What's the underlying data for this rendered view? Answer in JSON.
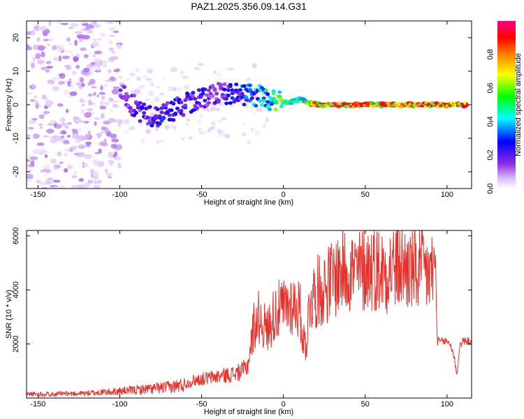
{
  "title": "PAZ1.2025.356.09.14.G31",
  "colors": {
    "snr_line": "#e8302b",
    "axis": "#000000"
  },
  "chart_data": [
    {
      "type": "heatmap",
      "xlabel": "Height of straight line (km)",
      "ylabel": "Frequency (Hz)",
      "xlim": [
        -157,
        115
      ],
      "ylim": [
        -25,
        25
      ],
      "xticks": [
        -150,
        -100,
        -50,
        0,
        50,
        100
      ],
      "yticks": [
        -20,
        -10,
        0,
        10,
        20
      ],
      "colorbar": {
        "label": "Normalized spectral amplitude",
        "range": [
          0,
          1
        ],
        "ticks": [
          0.0,
          0.2,
          0.4,
          0.6,
          0.8
        ],
        "colormap": [
          "#ffffff",
          "#d9bdf8",
          "#8a2be2",
          "#0000ff",
          "#00ffff",
          "#00ff00",
          "#ffff00",
          "#ff8000",
          "#ff0000",
          "#ff0080"
        ]
      },
      "ridge": [
        {
          "x": -100,
          "f": 4,
          "a": 0.25
        },
        {
          "x": -90,
          "f": -1,
          "a": 0.3
        },
        {
          "x": -80,
          "f": -4,
          "a": 0.35
        },
        {
          "x": -70,
          "f": -2,
          "a": 0.35
        },
        {
          "x": -60,
          "f": 0,
          "a": 0.35
        },
        {
          "x": -50,
          "f": 2,
          "a": 0.3
        },
        {
          "x": -40,
          "f": 4,
          "a": 0.3
        },
        {
          "x": -30,
          "f": 3,
          "a": 0.35
        },
        {
          "x": -20,
          "f": 3,
          "a": 0.4
        },
        {
          "x": -10,
          "f": 2,
          "a": 0.5
        },
        {
          "x": 0,
          "f": 0.5,
          "a": 0.75
        },
        {
          "x": 10,
          "f": 1.5,
          "a": 0.6
        },
        {
          "x": 20,
          "f": 0,
          "a": 0.95
        },
        {
          "x": 40,
          "f": 0,
          "a": 0.95
        },
        {
          "x": 60,
          "f": 0,
          "a": 0.9
        },
        {
          "x": 80,
          "f": 0,
          "a": 0.95
        },
        {
          "x": 95,
          "f": 0,
          "a": 0.85
        },
        {
          "x": 105,
          "f": 0,
          "a": 0.9
        },
        {
          "x": 112,
          "f": 0,
          "a": 0.95
        }
      ]
    },
    {
      "type": "line",
      "xlabel": "Height of straight line (km)",
      "ylabel": "SNR (10 * v/v)",
      "xlim": [
        -157,
        115
      ],
      "ylim": [
        0,
        6200
      ],
      "xticks": [
        -150,
        -100,
        -50,
        0,
        50,
        100
      ],
      "yticks": [
        2000,
        4000,
        6000
      ],
      "series": [
        {
          "x": [
            -157,
            -140,
            -120,
            -100,
            -90,
            -80,
            -70,
            -60,
            -55,
            -50,
            -45,
            -40,
            -35,
            -30,
            -25,
            -22,
            -20,
            -18,
            -15,
            -10,
            -5,
            0,
            5,
            10,
            12,
            14,
            16,
            20,
            25,
            30,
            35,
            40,
            45,
            50,
            55,
            60,
            65,
            70,
            75,
            80,
            85,
            90,
            93,
            94,
            96,
            100,
            102,
            104,
            106,
            108,
            110,
            112,
            115
          ],
          "y": [
            150,
            150,
            180,
            250,
            300,
            350,
            400,
            500,
            650,
            700,
            750,
            800,
            850,
            900,
            1000,
            1200,
            1900,
            2700,
            3000,
            2500,
            3200,
            3300,
            3500,
            3300,
            2200,
            2000,
            3600,
            3900,
            4100,
            4400,
            4700,
            4800,
            4600,
            4800,
            4900,
            4700,
            4800,
            4900,
            4800,
            4700,
            4700,
            4600,
            4800,
            2100,
            2100,
            2100,
            2000,
            1600,
            900,
            2000,
            2100,
            2100,
            2100
          ]
        }
      ]
    }
  ]
}
